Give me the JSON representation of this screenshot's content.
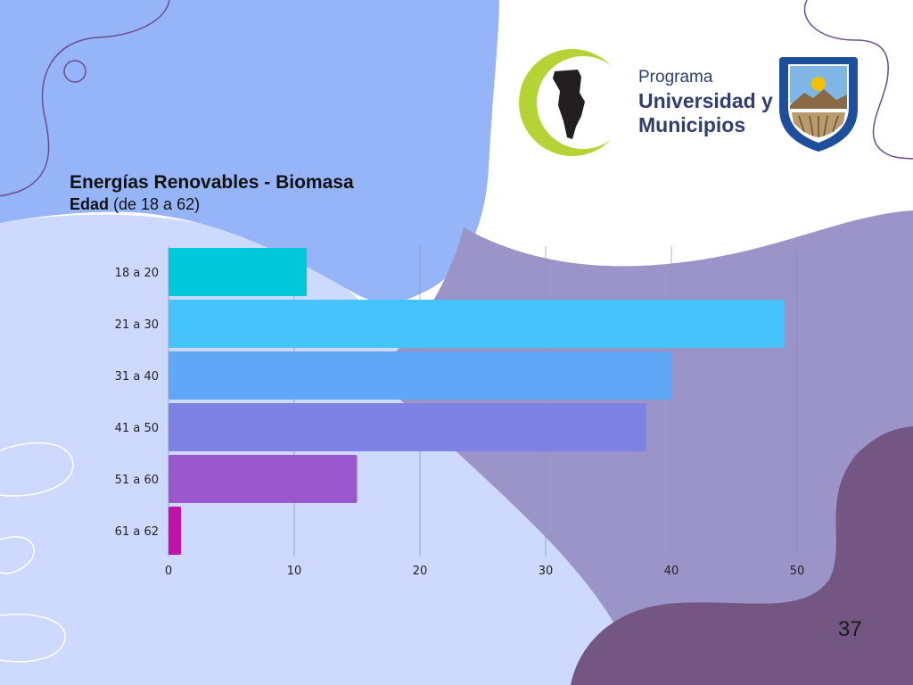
{
  "slide": {
    "title": "Energías Renovables - Biomasa",
    "subtitle_bold": "Edad",
    "subtitle_rest": " (de 18 a 62)",
    "page_number": "37"
  },
  "logos": {
    "program_line1": "Programa",
    "program_line2": "Universidad y",
    "program_line3": "Municipios",
    "program_color": "#2e3e70",
    "shield_color": "#1e4f9c"
  },
  "colors": {
    "bar_colors": [
      "#00c8d8",
      "#44c4fa",
      "#60a8f6",
      "#7e82e4",
      "#9a58cc",
      "#c012a8"
    ]
  },
  "chart_data": {
    "type": "bar",
    "orientation": "horizontal",
    "title": "Energías Renovables - Biomasa",
    "categories": [
      "18 a 20",
      "21 a 30",
      "31 a 40",
      "41 a 50",
      "51 a 60",
      "61 a 62"
    ],
    "values": [
      11,
      49,
      40,
      38,
      15,
      1
    ],
    "xlim": [
      0,
      50
    ],
    "xticks": [
      "0",
      "10",
      "20",
      "30",
      "40",
      "50"
    ],
    "grid": true
  }
}
